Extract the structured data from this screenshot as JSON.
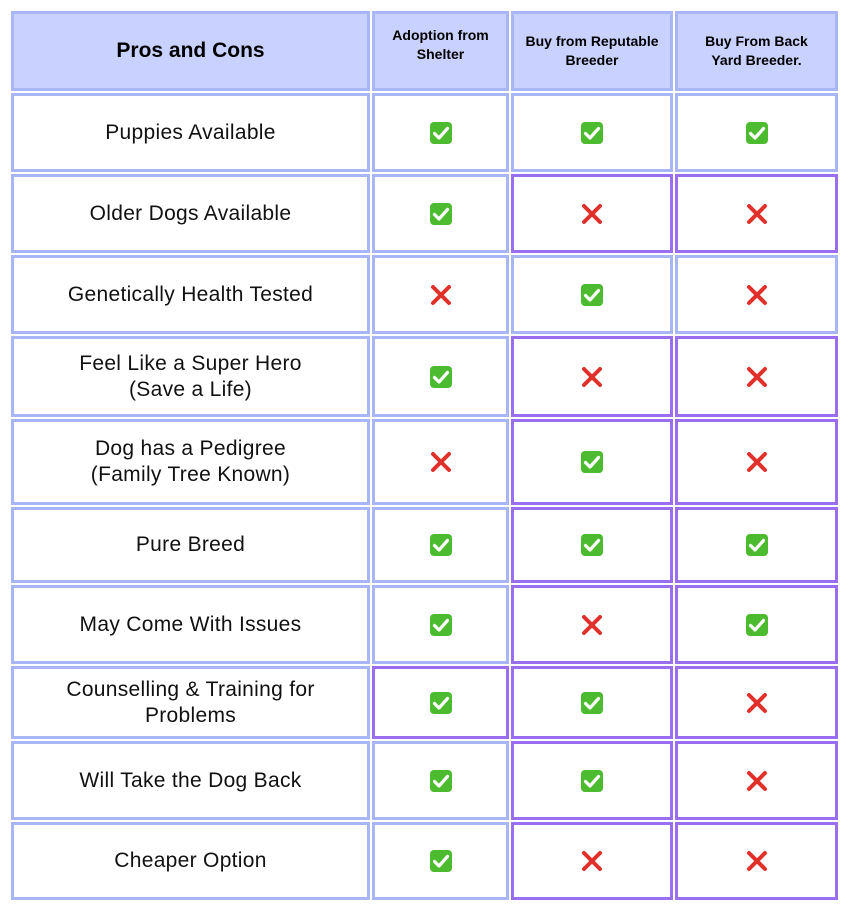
{
  "table": {
    "title": "Pros and Cons",
    "columns": [
      "Adoption from Shelter",
      "Buy from Reputable Breeder",
      "Buy From Back Yard Breeder."
    ],
    "rows": [
      {
        "label": "Puppies Available",
        "values": [
          "yes",
          "yes",
          "yes"
        ]
      },
      {
        "label": "Older Dogs Available",
        "values": [
          "yes",
          "no",
          "no"
        ]
      },
      {
        "label": "Genetically Health Tested",
        "values": [
          "no",
          "yes",
          "no"
        ]
      },
      {
        "label": "Feel Like a Super Hero\n(Save a Life)",
        "values": [
          "yes",
          "no",
          "no"
        ]
      },
      {
        "label": "Dog has a Pedigree\n(Family Tree Known)",
        "values": [
          "no",
          "yes",
          "no"
        ]
      },
      {
        "label": "Pure Breed",
        "values": [
          "yes",
          "yes",
          "yes"
        ]
      },
      {
        "label": "May Come With Issues",
        "values": [
          "yes",
          "no",
          "yes"
        ]
      },
      {
        "label": "Counselling & Training for\nProblems",
        "values": [
          "yes",
          "yes",
          "no"
        ]
      },
      {
        "label": "Will Take the Dog Back",
        "values": [
          "yes",
          "yes",
          "no"
        ]
      },
      {
        "label": "Cheaper Option",
        "values": [
          "yes",
          "no",
          "no"
        ]
      }
    ]
  },
  "colors": {
    "header_fill": "#c9d2ff",
    "cell_border": "#a9b6f5",
    "accent_border": "#9a6ef0",
    "check_green": "#4cbb2f",
    "cross_red": "#e0302a"
  },
  "icons": {
    "yes": "check-mark-icon",
    "no": "cross-mark-icon"
  }
}
